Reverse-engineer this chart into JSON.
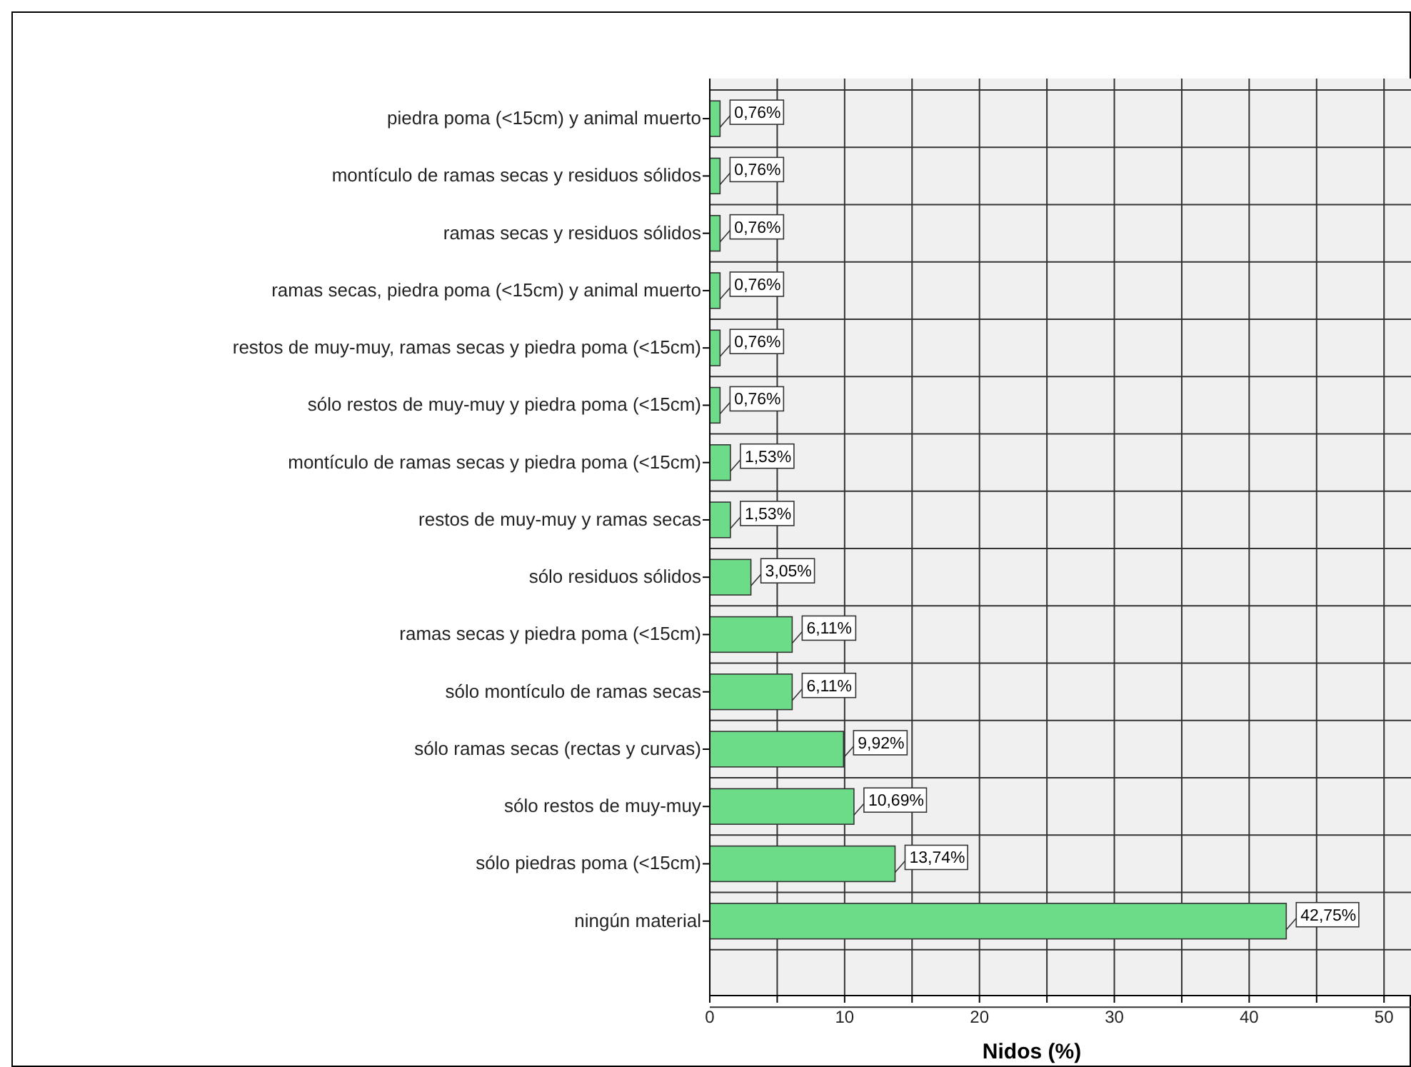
{
  "chart_data": {
    "type": "bar",
    "orientation": "horizontal",
    "xlabel": "Nidos (%)",
    "categories": [
      "piedra poma (<15cm) y animal muerto",
      "montículo de ramas secas y residuos sólidos",
      "ramas secas y residuos sólidos",
      "ramas secas, piedra poma (<15cm) y animal muerto",
      "restos de muy-muy, ramas secas y piedra poma (<15cm)",
      "sólo restos de muy-muy y piedra poma (<15cm)",
      "montículo de ramas secas y piedra poma (<15cm)",
      "restos de muy-muy y ramas secas",
      "sólo residuos sólidos",
      "ramas secas y piedra poma (<15cm)",
      "sólo montículo de ramas secas",
      "sólo ramas secas (rectas y curvas)",
      "sólo restos de muy-muy",
      "sólo piedras poma (<15cm)",
      "ningún material"
    ],
    "values": [
      0.76,
      0.76,
      0.76,
      0.76,
      0.76,
      0.76,
      1.53,
      1.53,
      3.05,
      6.11,
      6.11,
      9.92,
      10.69,
      13.74,
      42.75
    ],
    "value_labels": [
      "0,76%",
      "0,76%",
      "0,76%",
      "0,76%",
      "0,76%",
      "0,76%",
      "1,53%",
      "1,53%",
      "3,05%",
      "6,11%",
      "6,11%",
      "9,92%",
      "10,69%",
      "13,74%",
      "42,75%"
    ],
    "color": "#6cdc88",
    "xlim": [
      0,
      52
    ],
    "xticks": [
      0,
      {
        "value": 5,
        "label": null
      },
      10,
      {
        "value": 15,
        "label": null
      },
      20,
      {
        "value": 25,
        "label": null
      },
      30,
      {
        "value": 35,
        "label": null
      },
      40,
      {
        "value": 45,
        "label": null
      },
      50
    ],
    "grid": true
  }
}
